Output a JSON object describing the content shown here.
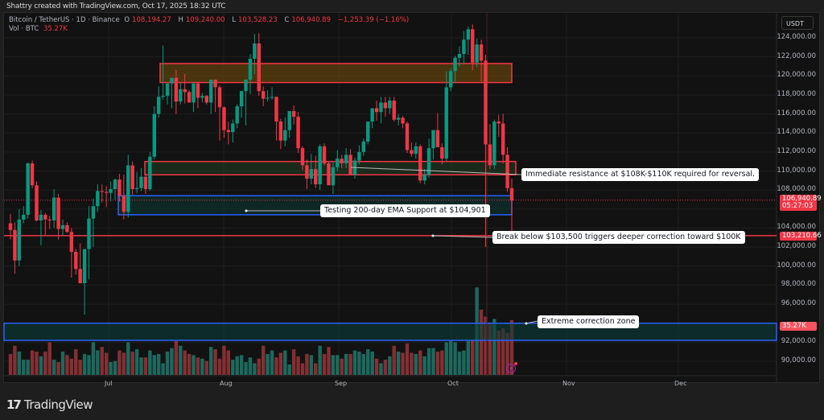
{
  "header": {
    "credit": "Shattry created with TradingView.com, Oct 17, 2025 18:32 UTC"
  },
  "legend": {
    "symbol": "Bitcoin / TetherUS · 1D · Binance",
    "o_label": "O",
    "o": "108,194.27",
    "h_label": "H",
    "h": "109,240.00",
    "l_label": "L",
    "l": "103,528.23",
    "c_label": "C",
    "c": "106,940.89",
    "change": "−1,253.39 (−1.16%)",
    "vol_label": "Vol · BTC",
    "vol": "35.27K"
  },
  "price_axis": {
    "currency": "USDT",
    "ticks": [
      "124,000.00",
      "122,000.00",
      "120,000.00",
      "118,000.00",
      "116,000.00",
      "114,000.00",
      "112,000.00",
      "110,000.00",
      "108,000.00",
      "104,000.00",
      "102,000.00",
      "100,000.00",
      "98,000.00",
      "96,000.00",
      "92,000.00",
      "90,000.00"
    ],
    "current_price": "106,940.89",
    "countdown": "05:27:03",
    "line_price": "103,210.66",
    "volume_tag": "35.27K"
  },
  "time_axis": {
    "labels": [
      "Jul",
      "Aug",
      "Sep",
      "Oct",
      "Nov",
      "Dec"
    ]
  },
  "annotations": {
    "resistance": "Immediate resistance at $108K-$110K required for reversal.",
    "ema_support": "Testing 200-day EMA  Support at $104,901",
    "break_below": "Break below $103,500 triggers deeper correction toward $100K",
    "extreme_zone": "Extreme correction zone"
  },
  "footer": {
    "brand": "TradingView",
    "brand_mark": "17"
  },
  "colors": {
    "up": "#089981",
    "down": "#f23645",
    "bg": "#121212",
    "blue_zone": "#2962ff",
    "red_zone": "#f23645"
  },
  "chart_data": {
    "type": "candlestick",
    "title": "Bitcoin / TetherUS · 1D · Binance",
    "xlabel": "",
    "ylabel": "USDT",
    "ylim": [
      89000,
      125500
    ],
    "x_ticks": [
      "Jul",
      "Aug",
      "Sep",
      "Oct",
      "Nov",
      "Dec"
    ],
    "zones": [
      {
        "name": "supply zone",
        "from": 119300,
        "to": 121300,
        "color": "#f2a53a"
      },
      {
        "name": "resistance zone",
        "from": 109600,
        "to": 111000,
        "color": "#f23645"
      },
      {
        "name": "200-day EMA support zone",
        "from": 105400,
        "to": 107400,
        "color": "#2962ff"
      },
      {
        "name": "extreme correction zone",
        "from": 92200,
        "to": 94000,
        "color": "#2962ff"
      }
    ],
    "horizontal_lines": [
      {
        "price": 103210.66,
        "color": "#f23645"
      }
    ],
    "ohlc_k": [
      [
        104.5,
        105.5,
        102.8,
        103.8
      ],
      [
        103.8,
        104.6,
        99.2,
        100.6
      ],
      [
        100.6,
        106.0,
        100.0,
        104.9
      ],
      [
        104.9,
        106.3,
        104.5,
        105.4
      ],
      [
        105.4,
        110.9,
        105.0,
        110.8
      ],
      [
        110.8,
        111.1,
        108.2,
        108.5
      ],
      [
        108.5,
        108.9,
        104.7,
        104.8
      ],
      [
        104.8,
        105.9,
        102.2,
        105.4
      ],
      [
        105.4,
        105.6,
        103.3,
        104.9
      ],
      [
        104.9,
        105.3,
        103.9,
        104.8
      ],
      [
        104.8,
        108.1,
        104.0,
        107.2
      ],
      [
        107.2,
        107.6,
        102.8,
        103.9
      ],
      [
        103.9,
        104.9,
        103.2,
        104.3
      ],
      [
        104.3,
        104.6,
        103.5,
        103.6
      ],
      [
        103.6,
        104.0,
        98.8,
        101.5
      ],
      [
        101.5,
        101.8,
        99.1,
        99.7
      ],
      [
        99.7,
        102.4,
        98.4,
        98.2
      ],
      [
        98.2,
        99.4,
        94.9,
        101.8
      ],
      [
        101.8,
        106.3,
        98.6,
        105.0
      ],
      [
        105.0,
        107.1,
        102.0,
        106.3
      ],
      [
        106.3,
        108.6,
        105.7,
        107.9
      ],
      [
        107.9,
        108.6,
        106.7,
        107.8
      ],
      [
        107.8,
        108.4,
        106.2,
        107.7
      ],
      [
        107.7,
        108.9,
        106.8,
        108.1
      ],
      [
        108.1,
        109.2,
        107.0,
        109.1
      ],
      [
        109.1,
        109.7,
        106.8,
        107.4
      ],
      [
        107.4,
        109.6,
        104.9,
        105.7
      ],
      [
        105.7,
        111.7,
        105.1,
        110.6
      ],
      [
        110.6,
        111.0,
        107.5,
        108.1
      ],
      [
        108.1,
        109.9,
        107.7,
        108.2
      ],
      [
        108.2,
        110.3,
        107.9,
        109.4
      ],
      [
        109.4,
        109.6,
        107.6,
        108.1
      ],
      [
        108.1,
        112.0,
        107.9,
        111.5
      ],
      [
        111.5,
        116.8,
        111.2,
        116.0
      ],
      [
        116.0,
        118.9,
        115.6,
        117.8
      ],
      [
        117.8,
        123.2,
        117.5,
        117.9
      ],
      [
        117.9,
        118.9,
        117.0,
        119.2
      ],
      [
        119.2,
        119.7,
        116.6,
        119.8
      ],
      [
        119.8,
        120.6,
        116.0,
        117.3
      ],
      [
        117.3,
        119.3,
        117.0,
        118.6
      ],
      [
        118.6,
        120.2,
        117.1,
        118.3
      ],
      [
        118.3,
        118.5,
        117.4,
        117.2
      ],
      [
        117.2,
        119.3,
        116.2,
        119.2
      ],
      [
        119.2,
        119.4,
        116.6,
        117.7
      ],
      [
        117.7,
        118.2,
        117.2,
        117.9
      ],
      [
        117.9,
        118.0,
        117.0,
        117.2
      ],
      [
        117.2,
        119.6,
        116.0,
        119.6
      ],
      [
        119.6,
        119.6,
        116.2,
        118.8
      ],
      [
        118.8,
        119.0,
        113.2,
        116.7
      ],
      [
        116.7,
        116.8,
        113.5,
        114.3
      ],
      [
        114.3,
        115.2,
        112.8,
        114.1
      ],
      [
        114.1,
        115.4,
        113.0,
        115.0
      ],
      [
        115.0,
        117.0,
        114.5,
        116.8
      ],
      [
        116.8,
        117.7,
        115.6,
        118.4
      ],
      [
        118.4,
        118.6,
        114.8,
        119.6
      ],
      [
        119.6,
        122.3,
        118.1,
        121.8
      ],
      [
        121.8,
        124.4,
        120.2,
        123.4
      ],
      [
        123.4,
        124.5,
        117.9,
        118.4
      ],
      [
        118.4,
        118.9,
        116.8,
        117.6
      ],
      [
        117.6,
        118.5,
        117.3,
        117.7
      ],
      [
        117.7,
        118.8,
        117.5,
        117.8
      ],
      [
        117.8,
        117.8,
        113.2,
        115.2
      ],
      [
        115.2,
        115.5,
        112.3,
        113.2
      ],
      [
        113.2,
        115.6,
        112.6,
        114.3
      ],
      [
        114.3,
        116.2,
        113.5,
        116.3
      ],
      [
        116.3,
        116.9,
        114.9,
        115.7
      ],
      [
        115.7,
        116.2,
        111.9,
        112.4
      ],
      [
        112.4,
        112.6,
        110.1,
        110.6
      ],
      [
        110.6,
        111.2,
        108.1,
        109.2
      ],
      [
        109.2,
        111.8,
        108.6,
        110.2
      ],
      [
        110.2,
        111.6,
        108.2,
        108.6
      ],
      [
        108.6,
        112.8,
        108.0,
        112.6
      ],
      [
        112.6,
        112.9,
        110.6,
        110.8
      ],
      [
        110.8,
        111.0,
        108.8,
        108.5
      ],
      [
        108.5,
        110.9,
        107.6,
        110.4
      ],
      [
        110.4,
        112.2,
        110.0,
        111.3
      ],
      [
        111.3,
        111.7,
        110.3,
        110.8
      ],
      [
        110.8,
        112.4,
        110.3,
        111.7
      ],
      [
        111.7,
        112.3,
        109.6,
        109.6
      ],
      [
        109.6,
        111.4,
        109.2,
        111.1
      ],
      [
        111.1,
        112.7,
        110.7,
        112.0
      ],
      [
        112.0,
        113.4,
        111.6,
        113.1
      ],
      [
        113.1,
        114.4,
        112.8,
        115.2
      ],
      [
        115.2,
        116.2,
        114.5,
        116.6
      ],
      [
        116.6,
        117.4,
        115.3,
        116.2
      ],
      [
        116.2,
        117.8,
        115.0,
        117.2
      ],
      [
        117.2,
        117.8,
        115.7,
        116.6
      ],
      [
        116.6,
        117.8,
        116.0,
        117.4
      ],
      [
        117.4,
        117.8,
        115.2,
        115.4
      ],
      [
        115.4,
        116.0,
        114.8,
        115.6
      ],
      [
        115.6,
        115.8,
        114.5,
        115.0
      ],
      [
        115.0,
        115.2,
        111.9,
        112.2
      ],
      [
        112.2,
        113.0,
        111.5,
        111.8
      ],
      [
        111.8,
        113.0,
        111.3,
        112.6
      ],
      [
        112.6,
        112.8,
        108.7,
        109.0
      ],
      [
        109.0,
        110.2,
        108.6,
        109.6
      ],
      [
        109.6,
        113.4,
        109.3,
        112.4
      ],
      [
        112.4,
        113.9,
        111.2,
        114.3
      ],
      [
        114.3,
        116.1,
        113.8,
        112.5
      ],
      [
        112.5,
        112.9,
        110.7,
        111.3
      ],
      [
        111.3,
        120.5,
        111.0,
        118.8
      ],
      [
        118.8,
        120.8,
        118.4,
        120.5
      ],
      [
        120.5,
        122.1,
        119.3,
        121.9
      ],
      [
        121.9,
        123.1,
        121.0,
        122.3
      ],
      [
        122.3,
        124.7,
        121.2,
        123.8
      ],
      [
        123.8,
        125.2,
        122.2,
        124.9
      ],
      [
        124.9,
        125.4,
        120.6,
        121.4
      ],
      [
        121.4,
        123.9,
        120.9,
        123.3
      ],
      [
        123.3,
        123.8,
        119.4,
        121.6
      ],
      [
        121.6,
        122.2,
        102.0,
        112.8
      ],
      [
        112.8,
        114.9,
        110.2,
        110.6
      ],
      [
        110.6,
        115.4,
        110.2,
        115.2
      ],
      [
        115.2,
        115.9,
        113.6,
        115.0
      ],
      [
        115.0,
        116.0,
        110.8,
        111.7
      ],
      [
        111.7,
        112.5,
        107.8,
        108.2
      ],
      [
        108.2,
        109.2,
        103.5,
        106.9
      ]
    ],
    "volume_k": [
      18,
      25,
      20,
      13,
      13,
      21,
      20,
      16,
      20,
      28,
      13,
      11,
      20,
      17,
      14,
      22,
      13,
      18,
      17,
      28,
      21,
      24,
      19,
      11,
      12,
      21,
      19,
      28,
      20,
      22,
      15,
      15,
      21,
      17,
      18,
      10,
      20,
      23,
      29,
      25,
      21,
      18,
      17,
      15,
      14,
      12,
      24,
      22,
      14,
      25,
      21,
      13,
      16,
      17,
      11,
      15,
      10,
      14,
      25,
      18,
      21,
      15,
      19,
      21,
      9,
      22,
      16,
      10,
      18,
      17,
      10,
      25,
      18,
      24,
      17,
      17,
      14,
      18,
      18,
      21,
      20,
      18,
      22,
      20,
      14,
      10,
      13,
      16,
      25,
      20,
      19,
      27,
      19,
      18,
      21,
      16,
      23,
      23,
      20,
      21,
      28,
      29,
      28,
      20,
      21,
      29,
      30,
      75,
      56,
      50,
      45,
      48,
      38,
      40,
      36,
      47
    ]
  }
}
